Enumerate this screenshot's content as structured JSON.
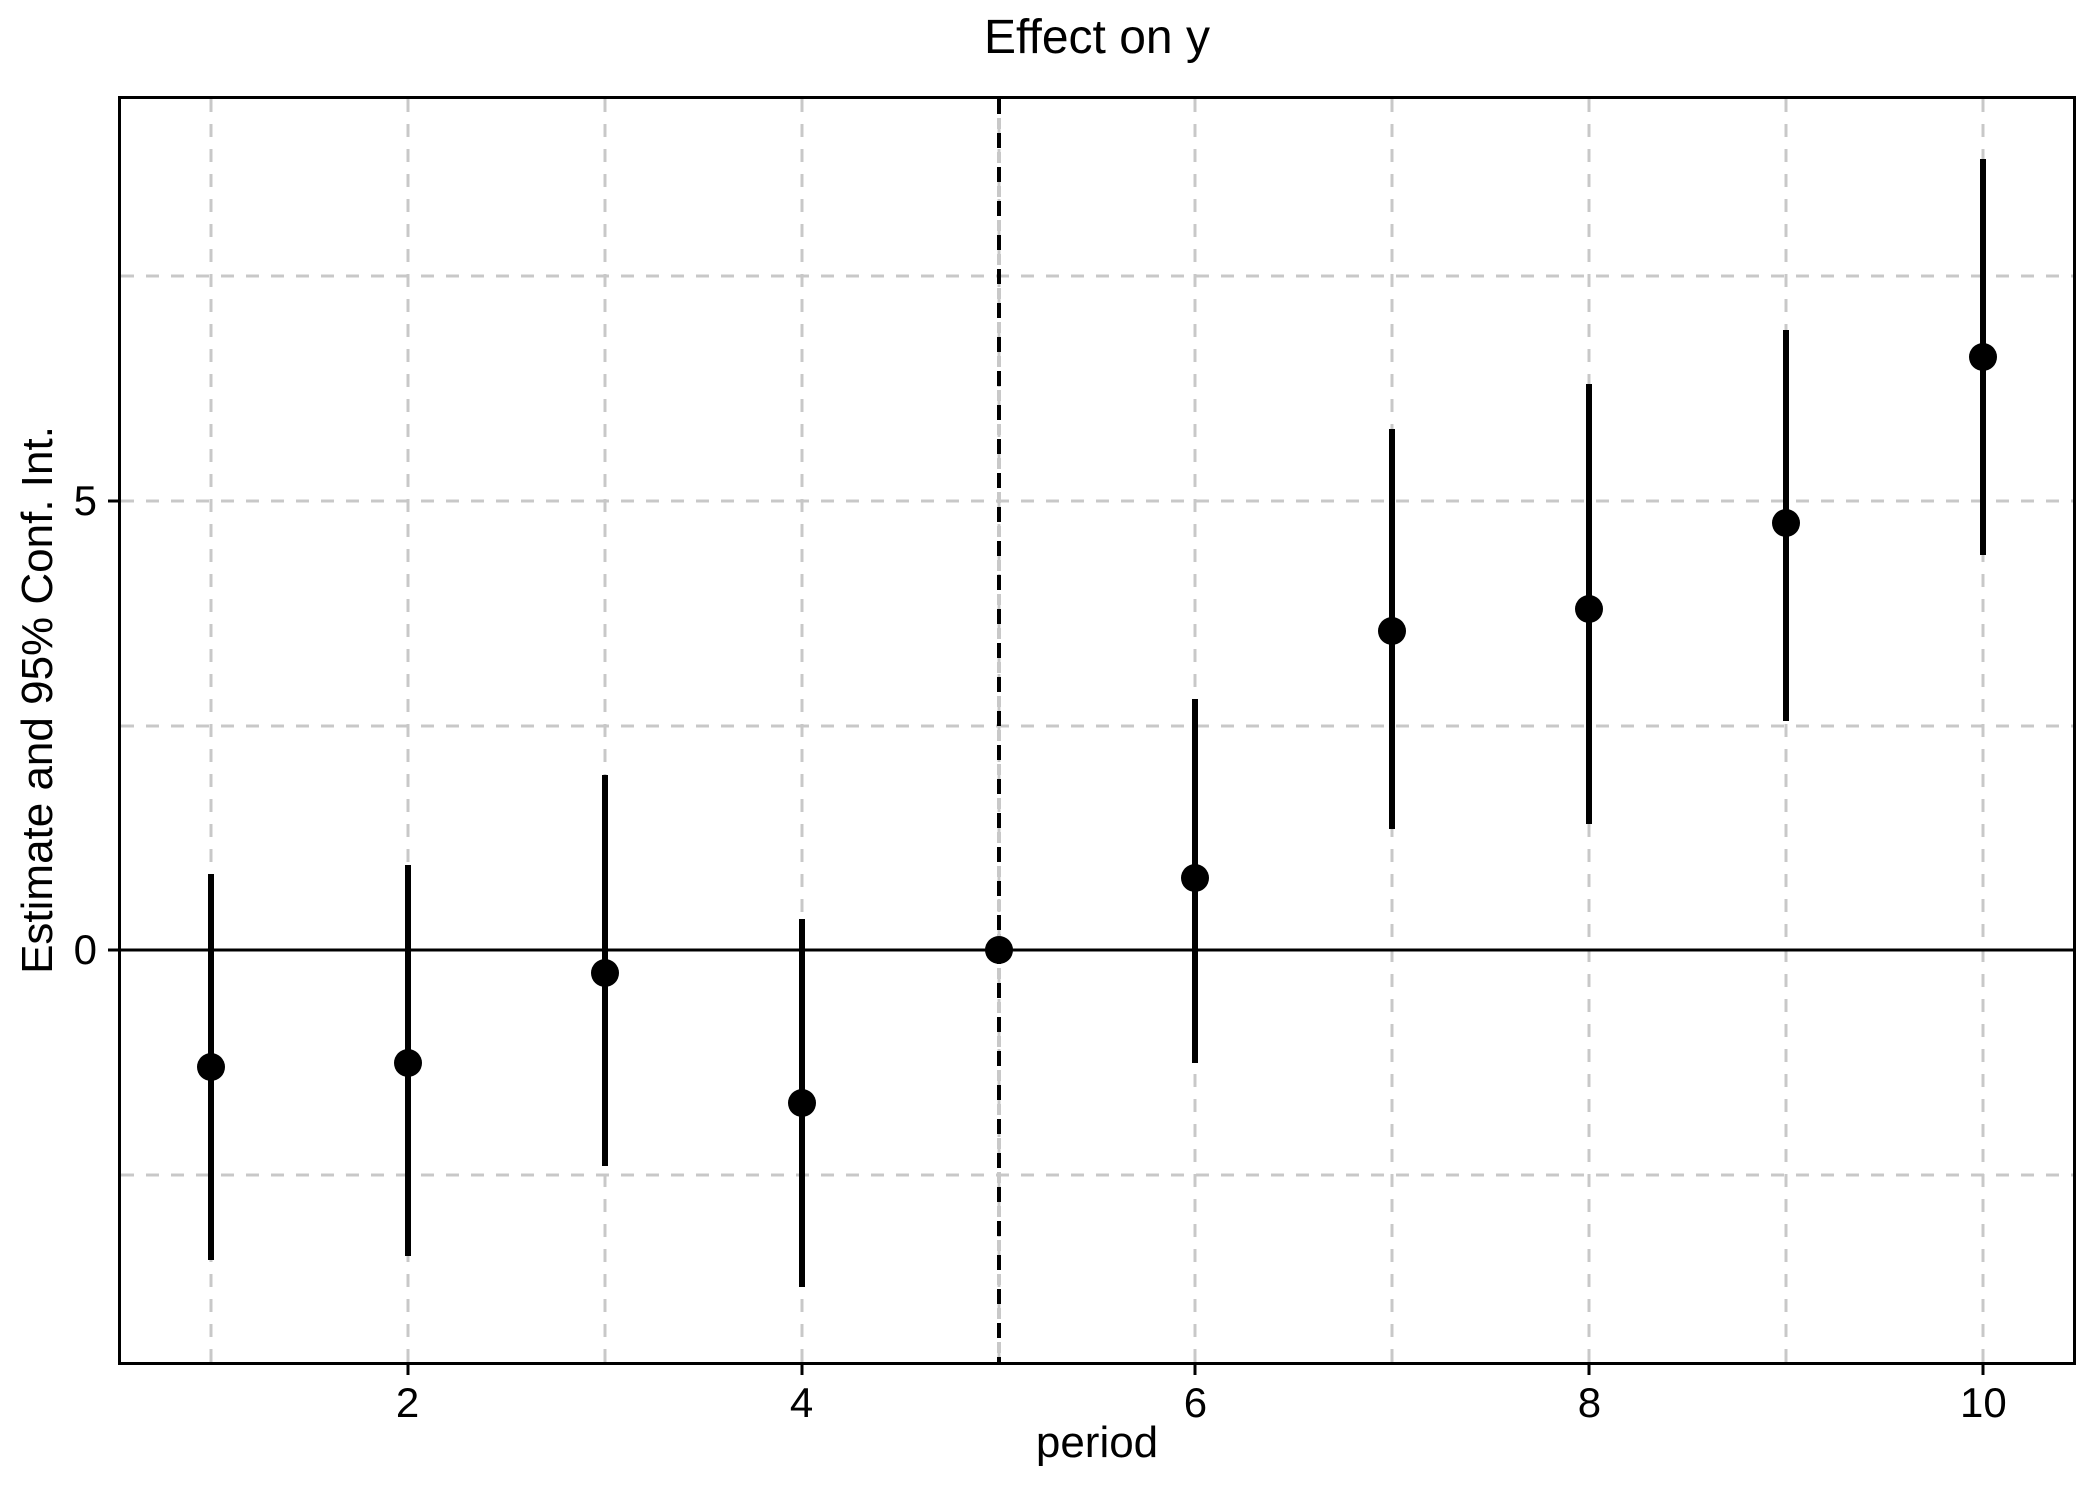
{
  "chart_data": {
    "type": "scatter",
    "subtype": "errorbar-event-study",
    "title": "Effect on y",
    "xlabel": "period",
    "ylabel": "Estimate and 95% Conf. Int.",
    "xlim": [
      0.545,
      10.455
    ],
    "ylim": [
      -4.58,
      9.47
    ],
    "grid": "on",
    "legend": "none",
    "colors": {
      "ink": "#000000",
      "grid": "#c8c8c8",
      "background": "#ffffff"
    },
    "x_gridlines": [
      1,
      2,
      3,
      4,
      5,
      6,
      7,
      8,
      9,
      10
    ],
    "y_gridlines": [
      -2.5,
      2.5,
      5,
      7.5
    ],
    "zero_line_y": 0,
    "reference_line_x": 5,
    "x_ticks": [
      {
        "value": 2,
        "label": "2"
      },
      {
        "value": 4,
        "label": "4"
      },
      {
        "value": 6,
        "label": "6"
      },
      {
        "value": 8,
        "label": "8"
      },
      {
        "value": 10,
        "label": "10"
      }
    ],
    "y_ticks": [
      {
        "value": 0,
        "label": "0"
      },
      {
        "value": 5,
        "label": "5"
      }
    ],
    "series": [
      {
        "name": "estimate",
        "points": [
          {
            "period": 1,
            "estimate": -1.3,
            "ci_low": -3.45,
            "ci_high": 0.85
          },
          {
            "period": 2,
            "estimate": -1.25,
            "ci_low": -3.4,
            "ci_high": 0.95
          },
          {
            "period": 3,
            "estimate": -0.25,
            "ci_low": -2.4,
            "ci_high": 1.95
          },
          {
            "period": 4,
            "estimate": -1.7,
            "ci_low": -3.75,
            "ci_high": 0.35
          },
          {
            "period": 5,
            "estimate": 0.0,
            "ci_low": 0.0,
            "ci_high": 0.0
          },
          {
            "period": 6,
            "estimate": 0.8,
            "ci_low": -1.25,
            "ci_high": 2.8
          },
          {
            "period": 7,
            "estimate": 3.55,
            "ci_low": 1.35,
            "ci_high": 5.8
          },
          {
            "period": 8,
            "estimate": 3.8,
            "ci_low": 1.4,
            "ci_high": 6.3
          },
          {
            "period": 9,
            "estimate": 4.75,
            "ci_low": 2.55,
            "ci_high": 6.9
          },
          {
            "period": 10,
            "estimate": 6.6,
            "ci_low": 4.4,
            "ci_high": 8.8
          }
        ]
      }
    ]
  }
}
